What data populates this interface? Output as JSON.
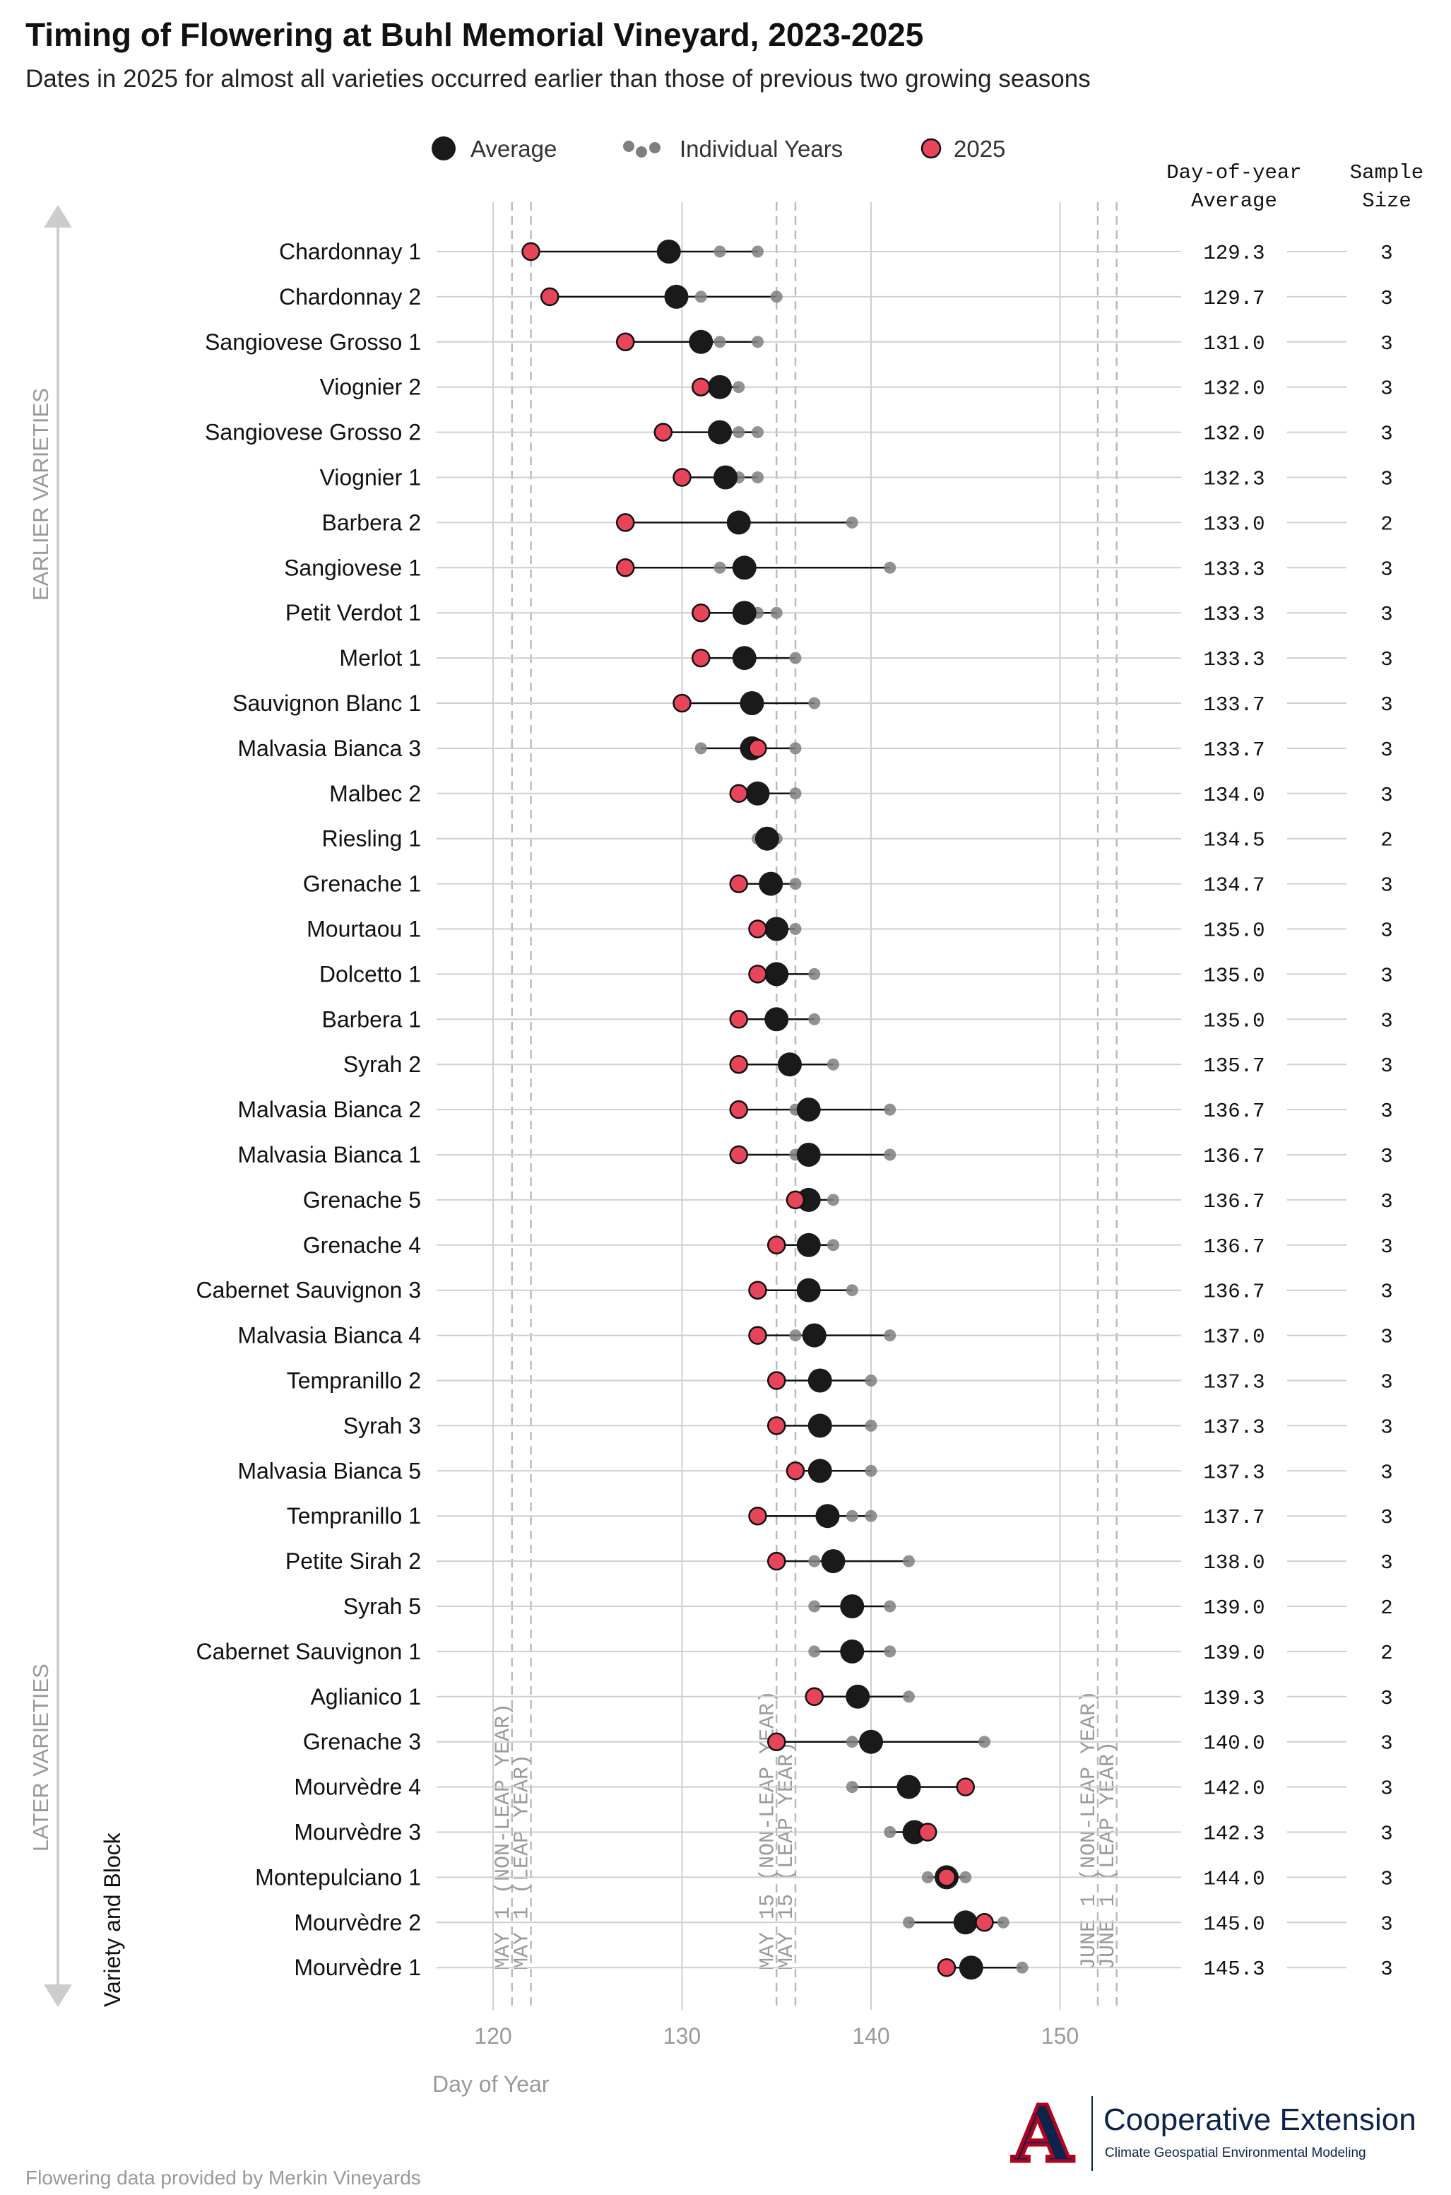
{
  "title": "Timing of Flowering at Buhl Memorial Vineyard, 2023-2025",
  "subtitle": "Dates in 2025 for almost all varieties occurred earlier than those of previous two growing seasons",
  "source_note": "Flowering data provided by Merkin Vineyards",
  "logo": {
    "line1": "Cooperative Extension",
    "line2": "Climate Geospatial Environmental Modeling",
    "mark": "A"
  },
  "colors": {
    "average": "#1a1a1a",
    "individual": "#7f7f7f",
    "y2025": "#e8455a",
    "reference": "#bbbbbb",
    "grid": "#cfcfcf"
  },
  "chart_data": {
    "type": "scatter",
    "xlabel": "Day of Year",
    "ylabel": "Variety and Block",
    "xlim": [
      113,
      160
    ],
    "xticks": [
      120,
      130,
      140,
      150
    ],
    "legend": {
      "placement": "top",
      "items": [
        "Average",
        "Individual Years",
        "2025"
      ]
    },
    "table_headers": {
      "average": [
        "Day-of-year",
        "Average"
      ],
      "sample": [
        "Sample",
        "Size"
      ]
    },
    "side_labels": {
      "top": "EARLIER VARIETIES",
      "bottom": "LATER VARIETIES"
    },
    "reference_lines": [
      {
        "x": 121,
        "label": "MAY 1 (NON-LEAP YEAR)"
      },
      {
        "x": 122,
        "label": "MAY 1 (LEAP YEAR)"
      },
      {
        "x": 135,
        "label": "MAY 15 (NON-LEAP YEAR)"
      },
      {
        "x": 136,
        "label": "MAY 15 (LEAP YEAR)"
      },
      {
        "x": 152,
        "label": "JUNE 1 (NON-LEAP YEAR)"
      },
      {
        "x": 153,
        "label": "JUNE 1 (LEAP YEAR)"
      }
    ],
    "varieties": [
      {
        "name": "Chardonnay 1",
        "avg_label": "129.3",
        "n": "3",
        "average": 129.3,
        "y2025": 122,
        "years": [
          122,
          132,
          134
        ]
      },
      {
        "name": "Chardonnay 2",
        "avg_label": "129.7",
        "n": "3",
        "average": 129.7,
        "y2025": 123,
        "years": [
          123,
          131,
          135
        ]
      },
      {
        "name": "Sangiovese Grosso 1",
        "avg_label": "131.0",
        "n": "3",
        "average": 131.0,
        "y2025": 127,
        "years": [
          127,
          132,
          134
        ]
      },
      {
        "name": "Viognier 2",
        "avg_label": "132.0",
        "n": "3",
        "average": 132.0,
        "y2025": 131,
        "years": [
          131,
          132,
          133
        ]
      },
      {
        "name": "Sangiovese Grosso 2",
        "avg_label": "132.0",
        "n": "3",
        "average": 132.0,
        "y2025": 129,
        "years": [
          129,
          133,
          134
        ]
      },
      {
        "name": "Viognier 1",
        "avg_label": "132.3",
        "n": "3",
        "average": 132.3,
        "y2025": 130,
        "years": [
          130,
          133,
          134
        ]
      },
      {
        "name": "Barbera 2",
        "avg_label": "133.0",
        "n": "2",
        "average": 133.0,
        "y2025": 127,
        "years": [
          127,
          139
        ]
      },
      {
        "name": "Sangiovese 1",
        "avg_label": "133.3",
        "n": "3",
        "average": 133.3,
        "y2025": 127,
        "years": [
          127,
          132,
          141
        ]
      },
      {
        "name": "Petit Verdot 1",
        "avg_label": "133.3",
        "n": "3",
        "average": 133.3,
        "y2025": 131,
        "years": [
          131,
          134,
          135
        ]
      },
      {
        "name": "Merlot 1",
        "avg_label": "133.3",
        "n": "3",
        "average": 133.3,
        "y2025": 131,
        "years": [
          131,
          133,
          136
        ]
      },
      {
        "name": "Sauvignon Blanc 1",
        "avg_label": "133.7",
        "n": "3",
        "average": 133.7,
        "y2025": 130,
        "years": [
          130,
          134,
          137
        ]
      },
      {
        "name": "Malvasia Bianca 3",
        "avg_label": "133.7",
        "n": "3",
        "average": 133.7,
        "y2025": 134,
        "years": [
          131,
          134,
          136
        ]
      },
      {
        "name": "Malbec 2",
        "avg_label": "134.0",
        "n": "3",
        "average": 134.0,
        "y2025": 133,
        "years": [
          133,
          134,
          136
        ]
      },
      {
        "name": "Riesling 1",
        "avg_label": "134.5",
        "n": "2",
        "average": 134.5,
        "y2025": null,
        "years": [
          134,
          135
        ]
      },
      {
        "name": "Grenache 1",
        "avg_label": "134.7",
        "n": "3",
        "average": 134.7,
        "y2025": 133,
        "years": [
          133,
          135,
          136
        ]
      },
      {
        "name": "Mourtaou 1",
        "avg_label": "135.0",
        "n": "3",
        "average": 135.0,
        "y2025": 134,
        "years": [
          134,
          135,
          136
        ]
      },
      {
        "name": "Dolcetto 1",
        "avg_label": "135.0",
        "n": "3",
        "average": 135.0,
        "y2025": 134,
        "years": [
          134,
          134,
          137
        ]
      },
      {
        "name": "Barbera 1",
        "avg_label": "135.0",
        "n": "3",
        "average": 135.0,
        "y2025": 133,
        "years": [
          133,
          135,
          137
        ]
      },
      {
        "name": "Syrah 2",
        "avg_label": "135.7",
        "n": "3",
        "average": 135.7,
        "y2025": 133,
        "years": [
          133,
          136,
          138
        ]
      },
      {
        "name": "Malvasia Bianca 2",
        "avg_label": "136.7",
        "n": "3",
        "average": 136.7,
        "y2025": 133,
        "years": [
          133,
          136,
          141
        ]
      },
      {
        "name": "Malvasia Bianca 1",
        "avg_label": "136.7",
        "n": "3",
        "average": 136.7,
        "y2025": 133,
        "years": [
          133,
          136,
          141
        ]
      },
      {
        "name": "Grenache 5",
        "avg_label": "136.7",
        "n": "3",
        "average": 136.7,
        "y2025": 136,
        "years": [
          136,
          136,
          138
        ]
      },
      {
        "name": "Grenache 4",
        "avg_label": "136.7",
        "n": "3",
        "average": 136.7,
        "y2025": 135,
        "years": [
          135,
          137,
          138
        ]
      },
      {
        "name": "Cabernet Sauvignon 3",
        "avg_label": "136.7",
        "n": "3",
        "average": 136.7,
        "y2025": 134,
        "years": [
          134,
          137,
          139
        ]
      },
      {
        "name": "Malvasia Bianca 4",
        "avg_label": "137.0",
        "n": "3",
        "average": 137.0,
        "y2025": 134,
        "years": [
          134,
          136,
          141
        ]
      },
      {
        "name": "Tempranillo 2",
        "avg_label": "137.3",
        "n": "3",
        "average": 137.3,
        "y2025": 135,
        "years": [
          135,
          137,
          140
        ]
      },
      {
        "name": "Syrah 3",
        "avg_label": "137.3",
        "n": "3",
        "average": 137.3,
        "y2025": 135,
        "years": [
          135,
          137,
          140
        ]
      },
      {
        "name": "Malvasia Bianca 5",
        "avg_label": "137.3",
        "n": "3",
        "average": 137.3,
        "y2025": 136,
        "years": [
          136,
          136,
          140
        ]
      },
      {
        "name": "Tempranillo 1",
        "avg_label": "137.7",
        "n": "3",
        "average": 137.7,
        "y2025": 134,
        "years": [
          134,
          139,
          140
        ]
      },
      {
        "name": "Petite Sirah 2",
        "avg_label": "138.0",
        "n": "3",
        "average": 138.0,
        "y2025": 135,
        "years": [
          135,
          137,
          142
        ]
      },
      {
        "name": "Syrah 5",
        "avg_label": "139.0",
        "n": "2",
        "average": 139.0,
        "y2025": null,
        "years": [
          137,
          141
        ]
      },
      {
        "name": "Cabernet Sauvignon 1",
        "avg_label": "139.0",
        "n": "2",
        "average": 139.0,
        "y2025": null,
        "years": [
          137,
          141
        ]
      },
      {
        "name": "Aglianico 1",
        "avg_label": "139.3",
        "n": "3",
        "average": 139.3,
        "y2025": 137,
        "years": [
          137,
          139,
          142
        ]
      },
      {
        "name": "Grenache 3",
        "avg_label": "140.0",
        "n": "3",
        "average": 140.0,
        "y2025": 135,
        "years": [
          135,
          139,
          146
        ]
      },
      {
        "name": "Mourvèdre 4",
        "avg_label": "142.0",
        "n": "3",
        "average": 142.0,
        "y2025": 145,
        "years": [
          139,
          142,
          145
        ]
      },
      {
        "name": "Mourvèdre 3",
        "avg_label": "142.3",
        "n": "3",
        "average": 142.3,
        "y2025": 143,
        "years": [
          141,
          143,
          143
        ]
      },
      {
        "name": "Montepulciano 1",
        "avg_label": "144.0",
        "n": "3",
        "average": 144.0,
        "y2025": 144,
        "years": [
          143,
          144,
          145
        ]
      },
      {
        "name": "Mourvèdre 2",
        "avg_label": "145.0",
        "n": "3",
        "average": 145.0,
        "y2025": 146,
        "years": [
          142,
          146,
          147
        ]
      },
      {
        "name": "Mourvèdre 1",
        "avg_label": "145.3",
        "n": "3",
        "average": 145.3,
        "y2025": 144,
        "years": [
          144,
          144,
          148
        ]
      }
    ]
  }
}
